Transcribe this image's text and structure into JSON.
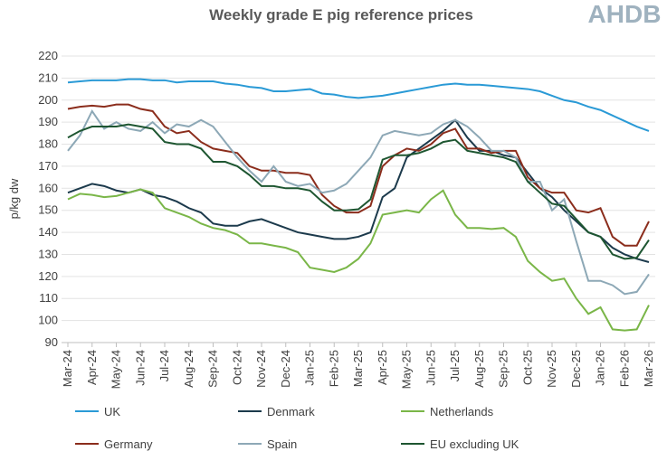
{
  "chart_data": {
    "type": "line",
    "title": "Weekly grade E pig reference prices",
    "logo": "AHDB",
    "y_label": "p/kg dw",
    "categories": [
      "Mar-24",
      null,
      "Apr-24",
      null,
      "May-24",
      null,
      "Jun-24",
      null,
      "Jul-24",
      null,
      "Aug-24",
      null,
      "Sep-24",
      null,
      "Oct-24",
      null,
      "Nov-24",
      null,
      "Dec-24",
      null,
      "Jan-25",
      null,
      "Feb-25",
      null,
      "Mar-25",
      null,
      "Apr-25",
      null,
      "May-25",
      null,
      "Jun-25",
      null,
      "Jul-25",
      null,
      "Aug-25",
      null,
      "Sep-25",
      null,
      "Oct-25",
      null,
      "Nov-25",
      null,
      "Dec-25",
      null,
      "Jan-26",
      null,
      "Feb-26",
      null,
      "Mar-26"
    ],
    "ylim": [
      90,
      220
    ],
    "yticks": [
      90,
      100,
      110,
      120,
      130,
      140,
      150,
      160,
      170,
      180,
      190,
      200,
      210,
      220
    ],
    "grid": true,
    "series": [
      {
        "name": "UK",
        "color": "#2a9ad6",
        "values": [
          208,
          208.5,
          209,
          209,
          209,
          209.5,
          209.5,
          209,
          209,
          208,
          208.5,
          208.5,
          208.5,
          207.5,
          207,
          206,
          205.5,
          204,
          204,
          204.5,
          205,
          203,
          202.5,
          201.5,
          201,
          201.5,
          202,
          203,
          204,
          205,
          206,
          207,
          207.5,
          207,
          207,
          206.5,
          206,
          205.5,
          205,
          204,
          202,
          200,
          199,
          197,
          195.5,
          193,
          190.5,
          188,
          186
        ]
      },
      {
        "name": "Denmark",
        "color": "#1c3a4c",
        "values": [
          158,
          160,
          162,
          161,
          159,
          158,
          159.5,
          157,
          156,
          154,
          151,
          149,
          144,
          143,
          143,
          145,
          146,
          144,
          142,
          140,
          139,
          138,
          137,
          137,
          138,
          140,
          156,
          160,
          174,
          178,
          182,
          186,
          191,
          183,
          177,
          177,
          175,
          174,
          167,
          160,
          156,
          150,
          145,
          140,
          138,
          133,
          130,
          128,
          126.5
        ]
      },
      {
        "name": "Netherlands",
        "color": "#7ab648",
        "values": [
          155,
          157.5,
          157,
          156,
          156.5,
          158,
          159.5,
          158,
          151,
          149,
          147,
          144,
          142,
          141,
          139,
          135,
          135,
          134,
          133,
          131,
          124,
          123,
          122,
          124,
          128,
          135,
          148,
          149,
          150,
          149,
          155,
          159,
          148,
          142,
          142,
          141.5,
          142,
          138,
          127,
          122,
          118,
          119,
          110,
          103,
          106,
          96,
          95.5,
          96,
          107
        ]
      },
      {
        "name": "Germany",
        "color": "#8b2d1c",
        "values": [
          196,
          197,
          197.5,
          197,
          198,
          198,
          196,
          195,
          188,
          185,
          186,
          181,
          178,
          177,
          176,
          170,
          168,
          168,
          167,
          167,
          166,
          157,
          152,
          149,
          149,
          152,
          170,
          175,
          178,
          177,
          180,
          185,
          187,
          178,
          178,
          176,
          177,
          177,
          165,
          160,
          158,
          158,
          150,
          149,
          151,
          138,
          134,
          134,
          145
        ]
      },
      {
        "name": "Spain",
        "color": "#8da8b6",
        "values": [
          177,
          184,
          195,
          187,
          190,
          187,
          186,
          190,
          185,
          189,
          188,
          191,
          188,
          181,
          174,
          168,
          163,
          170,
          163,
          161,
          162,
          158,
          159,
          162,
          168,
          174,
          184,
          186,
          185,
          184,
          185,
          189,
          191,
          188,
          183,
          177,
          177,
          174,
          163,
          163,
          150,
          155,
          136,
          118,
          118,
          116,
          112,
          113,
          121
        ]
      },
      {
        "name": "EU excluding UK",
        "color": "#1e5631",
        "values": [
          183,
          186,
          188,
          188,
          188,
          189,
          188,
          187,
          181,
          180,
          180,
          178,
          172,
          172,
          170,
          166,
          161,
          161,
          160,
          160,
          159,
          154,
          150,
          150,
          150.5,
          155,
          173,
          175,
          175,
          176,
          178,
          181,
          182,
          177,
          176,
          175,
          174,
          172,
          163,
          158,
          153,
          152,
          146,
          140,
          138,
          130,
          128,
          128.5,
          136.5
        ]
      }
    ]
  }
}
